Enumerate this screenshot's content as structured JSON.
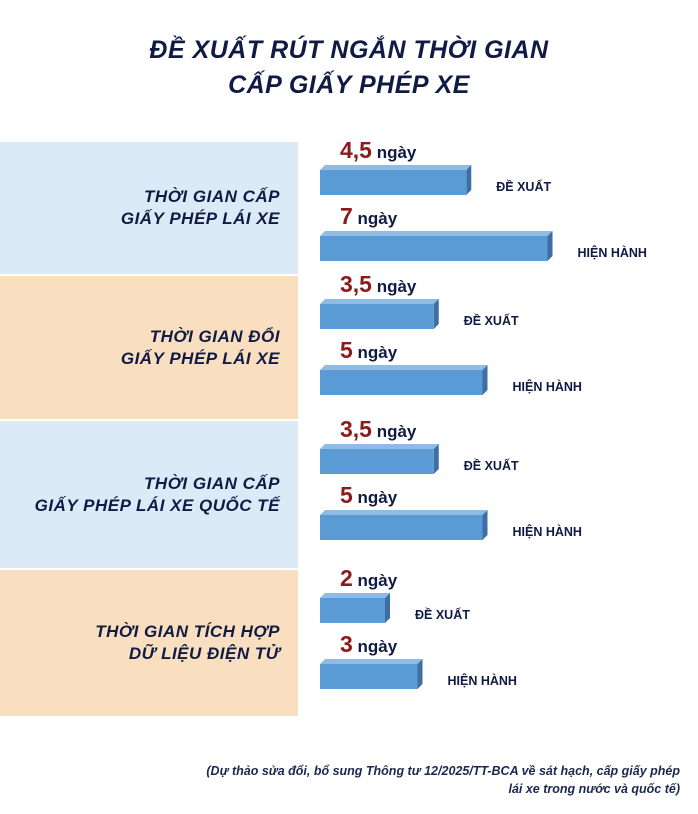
{
  "title_line1": "ĐỀ XUẤT RÚT NGẮN THỜI GIAN",
  "title_line2": "CẤP GIẤY PHÉP XE",
  "chart_data": {
    "type": "bar",
    "orientation": "horizontal",
    "categories": [
      "THỜI GIAN CẤP\nGIẤY PHÉP LÁI XE",
      "THỜI GIAN ĐỔI\nGIẤY PHÉP LÁI XE",
      "THỜI GIAN CẤP\nGIẤY PHÉP LÁI XE QUỐC TẾ",
      "THỜI GIAN TÍCH HỢP\nDỮ LIỆU ĐIỆN TỬ"
    ],
    "series": [
      {
        "name": "ĐỀ XUẤT",
        "values": [
          4.5,
          3.5,
          3.5,
          2
        ],
        "labels": [
          "4,5",
          "3,5",
          "3,5",
          "2"
        ]
      },
      {
        "name": "HIỆN HÀNH",
        "values": [
          7,
          5,
          5,
          3
        ],
        "labels": [
          "7",
          "5",
          "5",
          "3"
        ]
      }
    ],
    "unit": "ngày",
    "band_colors": [
      "#dce9f6",
      "#f9dfc0",
      "#dce9f6",
      "#f9dfc0"
    ],
    "bar_color": "#5b9bd5",
    "value_color": "#8b1a1a"
  },
  "footnote_line1": "(Dự thảo sửa đổi, bổ sung Thông tư 12/2025/TT-BCA về sát hạch, cấp giấy phép",
  "footnote_line2": "lái xe trong nước và quốc tế)"
}
